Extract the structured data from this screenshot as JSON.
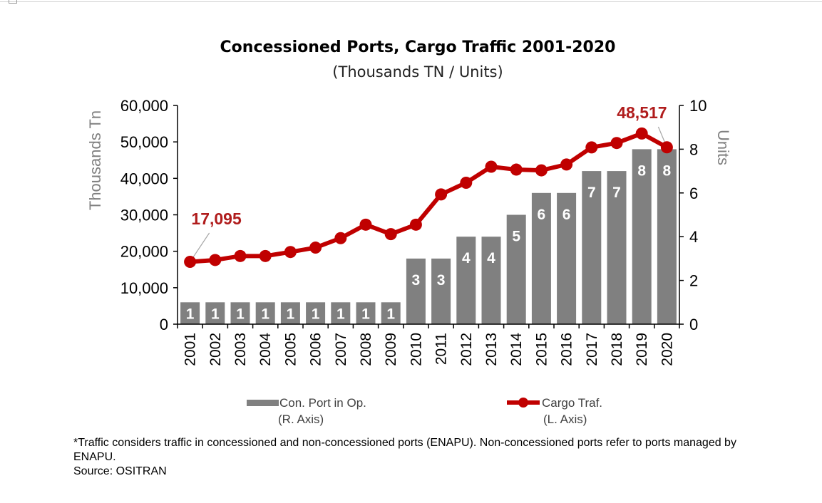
{
  "chart_data": {
    "type": "bar+line",
    "title": "Concessioned Ports, Cargo Traffic 2001-2020",
    "subtitle": "(Thousands TN / Units)",
    "categories": [
      "2001",
      "2002",
      "2003",
      "2004",
      "2005",
      "2006",
      "2007",
      "2008",
      "2009",
      "2010",
      "2011",
      "2012",
      "2013",
      "2014",
      "2015",
      "2016",
      "2017",
      "2018",
      "2019",
      "2020"
    ],
    "left_axis": {
      "title": "Thousands Tn",
      "range": [
        0,
        60000
      ],
      "ticks": [
        "0",
        "10,000",
        "20,000",
        "30,000",
        "40,000",
        "50,000",
        "60,000"
      ],
      "tick_values": [
        0,
        10000,
        20000,
        30000,
        40000,
        50000,
        60000
      ]
    },
    "right_axis": {
      "title": "Units",
      "range": [
        0,
        10
      ],
      "ticks": [
        "0",
        "2",
        "4",
        "6",
        "8",
        "10"
      ],
      "tick_values": [
        0,
        2,
        4,
        6,
        8,
        10
      ]
    },
    "series": [
      {
        "name": "Con. Port in Op.",
        "name_sub": "(R. Axis)",
        "type": "bar",
        "axis": "right",
        "color": "#808080",
        "values": [
          1,
          1,
          1,
          1,
          1,
          1,
          1,
          1,
          1,
          3,
          3,
          4,
          4,
          5,
          6,
          6,
          7,
          7,
          8,
          8
        ],
        "labels": [
          "1",
          "1",
          "1",
          "1",
          "1",
          "1",
          "1",
          "1",
          "1",
          "3",
          "3",
          "4",
          "4",
          "5",
          "6",
          "6",
          "7",
          "7",
          "8",
          "8"
        ]
      },
      {
        "name": "Cargo Traf.",
        "name_sub": "(L. Axis)",
        "type": "line",
        "axis": "left",
        "color": "#c00000",
        "values": [
          17095,
          17600,
          18700,
          18700,
          19800,
          21000,
          23600,
          27300,
          24700,
          27300,
          35600,
          38800,
          43200,
          42400,
          42200,
          43800,
          48500,
          49700,
          52300,
          48517
        ]
      }
    ],
    "annotations": [
      {
        "text": "17,095",
        "index": 0
      },
      {
        "text": "48,517",
        "index": 19
      }
    ],
    "legend": "bottom",
    "grid": false
  },
  "footnote": {
    "line1": "*Traffic considers traffic in concessioned and non-concessioned ports (ENAPU). Non-concessioned ports refer to ports managed by",
    "line2": "ENAPU.",
    "source": "Source: OSITRAN"
  }
}
